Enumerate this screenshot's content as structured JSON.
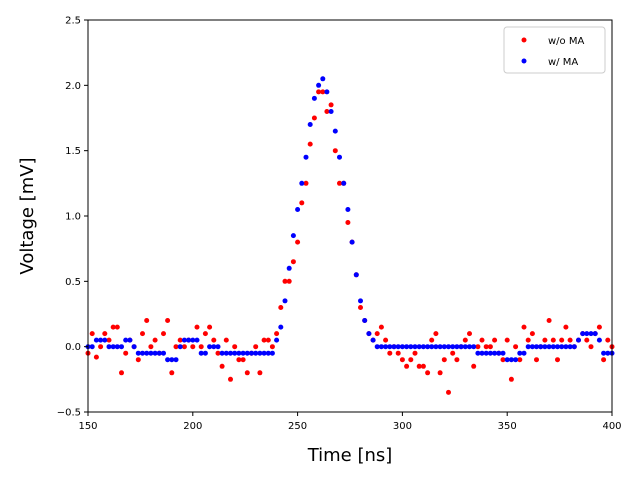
{
  "chart_data": {
    "type": "scatter",
    "title": "",
    "xlabel": "Time [ns]",
    "ylabel": "Voltage [mV]",
    "xlim": [
      150,
      400
    ],
    "ylim": [
      -0.5,
      2.5
    ],
    "xticks": [
      150,
      200,
      250,
      300,
      350,
      400
    ],
    "yticks": [
      -0.5,
      0.0,
      0.5,
      1.0,
      1.5,
      2.0,
      2.5
    ],
    "xtick_labels": [
      "150",
      "200",
      "250",
      "300",
      "350",
      "400"
    ],
    "ytick_labels": [
      "−0.5",
      "0.0",
      "0.5",
      "1.0",
      "1.5",
      "2.0",
      "2.5"
    ],
    "legend_position": "upper-right",
    "series": [
      {
        "name": "w/o MA",
        "color": "#ff0000",
        "x": [
          150,
          152,
          154,
          156,
          158,
          160,
          162,
          164,
          166,
          168,
          170,
          172,
          174,
          176,
          178,
          180,
          182,
          184,
          186,
          188,
          190,
          192,
          194,
          196,
          198,
          200,
          202,
          204,
          206,
          208,
          210,
          212,
          214,
          216,
          218,
          220,
          222,
          224,
          226,
          228,
          230,
          232,
          234,
          236,
          238,
          240,
          242,
          244,
          246,
          248,
          250,
          252,
          254,
          256,
          258,
          260,
          262,
          264,
          266,
          268,
          270,
          272,
          274,
          276,
          278,
          280,
          282,
          284,
          286,
          288,
          290,
          292,
          294,
          296,
          298,
          300,
          302,
          304,
          306,
          308,
          310,
          312,
          314,
          316,
          318,
          320,
          322,
          324,
          326,
          328,
          330,
          332,
          334,
          336,
          338,
          340,
          342,
          344,
          346,
          348,
          350,
          352,
          354,
          356,
          358,
          360,
          362,
          364,
          366,
          368,
          370,
          372,
          374,
          376,
          378,
          380,
          382,
          384,
          386,
          388,
          390,
          392,
          394,
          396,
          398,
          400
        ],
        "values": [
          -0.05,
          0.1,
          -0.08,
          0.0,
          0.1,
          0.05,
          0.15,
          0.15,
          -0.2,
          -0.05,
          0.05,
          0.0,
          -0.1,
          0.1,
          0.2,
          0.0,
          0.05,
          -0.05,
          0.1,
          0.2,
          -0.2,
          0.0,
          0.05,
          0.0,
          0.05,
          0.0,
          0.15,
          0.0,
          0.1,
          0.15,
          0.05,
          -0.05,
          -0.15,
          0.05,
          -0.25,
          0.0,
          -0.1,
          -0.1,
          -0.2,
          -0.05,
          0.0,
          -0.2,
          0.05,
          0.05,
          0.0,
          0.1,
          0.3,
          0.5,
          0.5,
          0.65,
          0.8,
          1.1,
          1.25,
          1.55,
          1.75,
          1.95,
          1.95,
          1.8,
          1.85,
          1.5,
          1.25,
          1.25,
          0.95,
          0.8,
          0.55,
          0.3,
          0.2,
          0.1,
          0.05,
          0.1,
          0.15,
          0.05,
          -0.05,
          0.0,
          -0.05,
          -0.1,
          -0.15,
          -0.1,
          -0.05,
          -0.15,
          -0.15,
          -0.2,
          0.05,
          0.1,
          -0.2,
          -0.1,
          -0.35,
          -0.05,
          -0.1,
          0.0,
          0.05,
          0.1,
          -0.15,
          0.0,
          0.05,
          0.0,
          0.0,
          0.05,
          -0.05,
          -0.1,
          0.05,
          -0.25,
          0.0,
          -0.1,
          0.15,
          0.05,
          0.1,
          -0.1,
          0.0,
          0.05,
          0.2,
          0.05,
          -0.1,
          0.05,
          0.15,
          0.05,
          0.0,
          0.05,
          0.1,
          0.05,
          0.0,
          0.1,
          0.15,
          -0.1,
          0.05,
          0.0
        ]
      },
      {
        "name": "w/ MA",
        "color": "#0000ff",
        "x": [
          150,
          152,
          154,
          156,
          158,
          160,
          162,
          164,
          166,
          168,
          170,
          172,
          174,
          176,
          178,
          180,
          182,
          184,
          186,
          188,
          190,
          192,
          194,
          196,
          198,
          200,
          202,
          204,
          206,
          208,
          210,
          212,
          214,
          216,
          218,
          220,
          222,
          224,
          226,
          228,
          230,
          232,
          234,
          236,
          238,
          240,
          242,
          244,
          246,
          248,
          250,
          252,
          254,
          256,
          258,
          260,
          262,
          264,
          266,
          268,
          270,
          272,
          274,
          276,
          278,
          280,
          282,
          284,
          286,
          288,
          290,
          292,
          294,
          296,
          298,
          300,
          302,
          304,
          306,
          308,
          310,
          312,
          314,
          316,
          318,
          320,
          322,
          324,
          326,
          328,
          330,
          332,
          334,
          336,
          338,
          340,
          342,
          344,
          346,
          348,
          350,
          352,
          354,
          356,
          358,
          360,
          362,
          364,
          366,
          368,
          370,
          372,
          374,
          376,
          378,
          380,
          382,
          384,
          386,
          388,
          390,
          392,
          394,
          396,
          398,
          400
        ],
        "values": [
          0.0,
          0.0,
          0.05,
          0.05,
          0.05,
          0.0,
          0.0,
          0.0,
          0.0,
          0.05,
          0.05,
          0.0,
          -0.05,
          -0.05,
          -0.05,
          -0.05,
          -0.05,
          -0.05,
          -0.05,
          -0.1,
          -0.1,
          -0.1,
          0.0,
          0.05,
          0.05,
          0.05,
          0.05,
          -0.05,
          -0.05,
          0.0,
          0.0,
          0.0,
          -0.05,
          -0.05,
          -0.05,
          -0.05,
          -0.05,
          -0.05,
          -0.05,
          -0.05,
          -0.05,
          -0.05,
          -0.05,
          -0.05,
          -0.05,
          0.05,
          0.15,
          0.35,
          0.6,
          0.85,
          1.05,
          1.25,
          1.45,
          1.7,
          1.9,
          2.0,
          2.05,
          1.95,
          1.8,
          1.65,
          1.45,
          1.25,
          1.05,
          0.8,
          0.55,
          0.35,
          0.2,
          0.1,
          0.05,
          0.0,
          0.0,
          0.0,
          0.0,
          0.0,
          0.0,
          0.0,
          0.0,
          0.0,
          0.0,
          0.0,
          0.0,
          0.0,
          0.0,
          0.0,
          0.0,
          0.0,
          0.0,
          0.0,
          0.0,
          0.0,
          0.0,
          0.0,
          0.0,
          -0.05,
          -0.05,
          -0.05,
          -0.05,
          -0.05,
          -0.05,
          -0.05,
          -0.1,
          -0.1,
          -0.1,
          -0.05,
          -0.05,
          0.0,
          0.0,
          0.0,
          0.0,
          0.0,
          0.0,
          0.0,
          0.0,
          0.0,
          0.0,
          0.0,
          0.0,
          0.05,
          0.1,
          0.1,
          0.1,
          0.1,
          0.05,
          -0.05,
          -0.05,
          -0.05
        ]
      }
    ]
  }
}
